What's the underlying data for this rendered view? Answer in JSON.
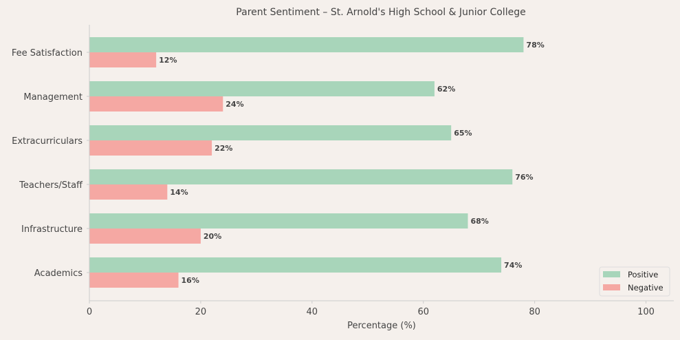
{
  "chart_data": {
    "type": "bar",
    "orientation": "horizontal",
    "title": "Parent Sentiment – St. Arnold's High School & Junior College",
    "xlabel": "Percentage (%)",
    "ylabel": "",
    "xlim": [
      0,
      105
    ],
    "xticks": [
      0,
      20,
      40,
      60,
      80,
      100
    ],
    "categories": [
      "Fee Satisfaction",
      "Management",
      "Extracurriculars",
      "Teachers/Staff",
      "Infrastructure",
      "Academics"
    ],
    "series": [
      {
        "name": "Positive",
        "color": "#a8d5ba",
        "values": [
          78,
          62,
          65,
          76,
          68,
          74
        ]
      },
      {
        "name": "Negative",
        "color": "#f5a8a3",
        "values": [
          12,
          24,
          22,
          14,
          20,
          16
        ]
      }
    ],
    "data_label_suffix": "%",
    "grid": false,
    "legend_position": "lower-right"
  }
}
